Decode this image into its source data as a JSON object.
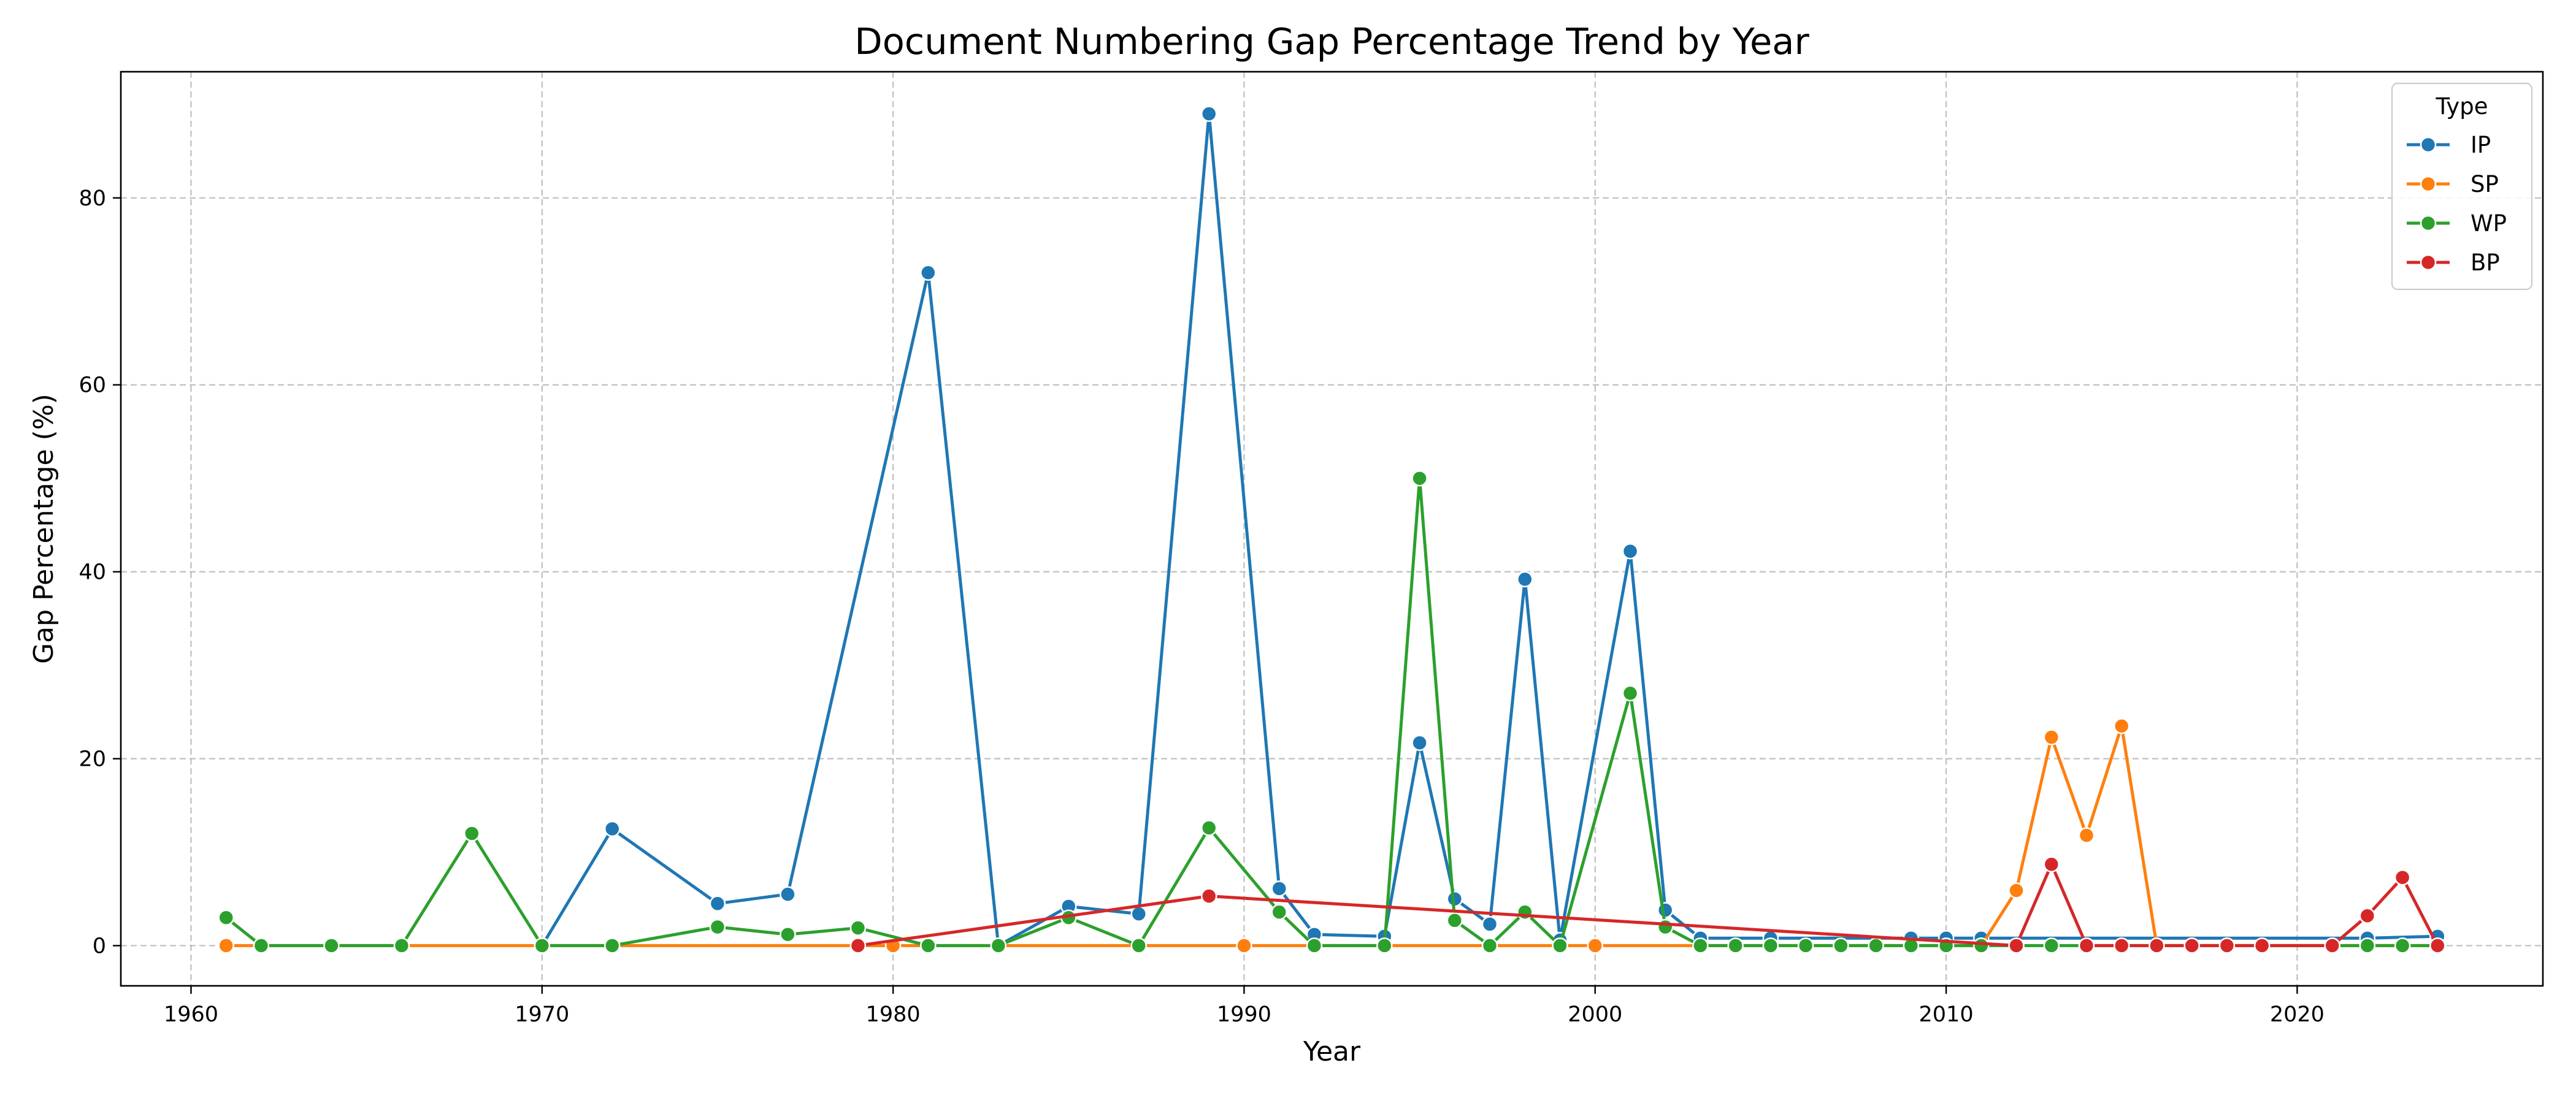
{
  "chart_data": {
    "type": "line",
    "title": "Document Numbering Gap Percentage Trend by Year",
    "xlabel": "Year",
    "ylabel": "Gap Percentage (%)",
    "xlim": [
      1958,
      2027
    ],
    "ylim": [
      -4.3,
      93.5
    ],
    "xticks": [
      1960,
      1970,
      1980,
      1990,
      2000,
      2010,
      2020
    ],
    "yticks": [
      0,
      20,
      40,
      60,
      80
    ],
    "grid": true,
    "legend": {
      "title": "Type",
      "placement": "top-right"
    },
    "series": [
      {
        "name": "IP",
        "color": "#1f77b4",
        "points": [
          [
            1970,
            0
          ],
          [
            1972,
            12.5
          ],
          [
            1975,
            4.5
          ],
          [
            1977,
            5.5
          ],
          [
            1981,
            72
          ],
          [
            1983,
            0
          ],
          [
            1985,
            4.2
          ],
          [
            1987,
            3.4
          ],
          [
            1989,
            89
          ],
          [
            1991,
            6.1
          ],
          [
            1992,
            1.2
          ],
          [
            1994,
            1
          ],
          [
            1995,
            21.7
          ],
          [
            1996,
            5
          ],
          [
            1997,
            2.3
          ],
          [
            1998,
            39.2
          ],
          [
            1999,
            0.6
          ],
          [
            2001,
            42.2
          ],
          [
            2002,
            3.8
          ],
          [
            2003,
            0.8
          ],
          [
            2005,
            0.8
          ],
          [
            2009,
            0.8
          ],
          [
            2010,
            0.8
          ],
          [
            2011,
            0.8
          ],
          [
            2022,
            0.8
          ],
          [
            2024,
            1
          ]
        ]
      },
      {
        "name": "SP",
        "color": "#ff7f0e",
        "points": [
          [
            1961,
            0
          ],
          [
            1970,
            0
          ],
          [
            1980,
            0
          ],
          [
            1990,
            0
          ],
          [
            2000,
            0
          ],
          [
            2011,
            0
          ],
          [
            2012,
            5.9
          ],
          [
            2013,
            22.3
          ],
          [
            2014,
            11.8
          ],
          [
            2015,
            23.5
          ],
          [
            2016,
            0
          ],
          [
            2017,
            0
          ],
          [
            2018,
            0
          ],
          [
            2019,
            0
          ],
          [
            2021,
            0
          ],
          [
            2022,
            0
          ],
          [
            2023,
            0
          ],
          [
            2024,
            0
          ]
        ]
      },
      {
        "name": "WP",
        "color": "#2ca02c",
        "points": [
          [
            1961,
            3
          ],
          [
            1962,
            0
          ],
          [
            1964,
            0
          ],
          [
            1966,
            0
          ],
          [
            1968,
            12
          ],
          [
            1970,
            0
          ],
          [
            1972,
            0
          ],
          [
            1975,
            2
          ],
          [
            1977,
            1.2
          ],
          [
            1979,
            1.9
          ],
          [
            1981,
            0
          ],
          [
            1983,
            0
          ],
          [
            1985,
            3
          ],
          [
            1987,
            0
          ],
          [
            1989,
            12.6
          ],
          [
            1991,
            3.6
          ],
          [
            1992,
            0
          ],
          [
            1994,
            0
          ],
          [
            1995,
            50
          ],
          [
            1996,
            2.7
          ],
          [
            1997,
            0
          ],
          [
            1998,
            3.6
          ],
          [
            1999,
            0
          ],
          [
            2001,
            27
          ],
          [
            2002,
            2
          ],
          [
            2003,
            0
          ],
          [
            2004,
            0
          ],
          [
            2005,
            0
          ],
          [
            2006,
            0
          ],
          [
            2007,
            0
          ],
          [
            2008,
            0
          ],
          [
            2009,
            0
          ],
          [
            2010,
            0
          ],
          [
            2011,
            0
          ],
          [
            2012,
            0
          ],
          [
            2013,
            0
          ],
          [
            2014,
            0
          ],
          [
            2015,
            0
          ],
          [
            2016,
            0
          ],
          [
            2017,
            0
          ],
          [
            2018,
            0
          ],
          [
            2019,
            0
          ],
          [
            2021,
            0
          ],
          [
            2022,
            0
          ],
          [
            2023,
            0
          ],
          [
            2024,
            0
          ]
        ]
      },
      {
        "name": "BP",
        "color": "#d62728",
        "points": [
          [
            1979,
            0
          ],
          [
            1989,
            5.3
          ],
          [
            2012,
            0
          ],
          [
            2013,
            8.7
          ],
          [
            2014,
            0
          ],
          [
            2015,
            0
          ],
          [
            2016,
            0
          ],
          [
            2017,
            0
          ],
          [
            2018,
            0
          ],
          [
            2019,
            0
          ],
          [
            2021,
            0
          ],
          [
            2022,
            3.2
          ],
          [
            2023,
            7.3
          ],
          [
            2024,
            0
          ]
        ]
      }
    ]
  }
}
